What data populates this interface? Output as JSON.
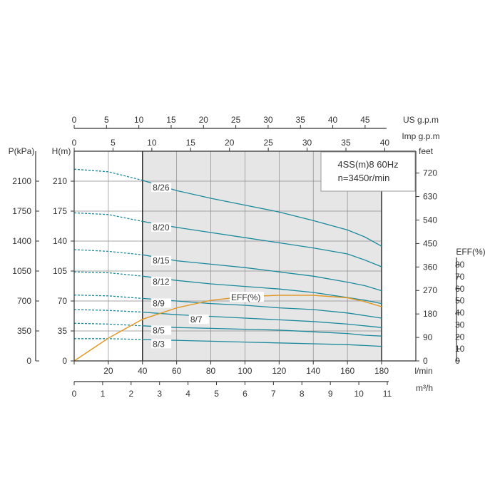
{
  "chart_data": {
    "type": "line",
    "title_line1": "4SS(m)8 60Hz",
    "title_line2": "n=3450r/min",
    "axes": {
      "flow_lmin": {
        "label": "l/min",
        "ticks": [
          0,
          20,
          40,
          60,
          80,
          100,
          120,
          140,
          160,
          180
        ],
        "range": [
          0,
          180
        ]
      },
      "flow_m3h": {
        "label": "m³/h",
        "ticks": [
          0,
          1,
          2,
          3,
          4,
          5,
          6,
          7,
          8,
          9,
          10,
          11
        ]
      },
      "us_gpm": {
        "label": "US g.p.m",
        "ticks": [
          0,
          5,
          10,
          15,
          20,
          25,
          30,
          35,
          40,
          45
        ]
      },
      "imp_gpm": {
        "label": "Imp g.p.m",
        "ticks": [
          0,
          5,
          10,
          15,
          20,
          25,
          30,
          35,
          40
        ]
      },
      "head_m": {
        "label": "H(m)",
        "ticks": [
          0,
          35,
          70,
          105,
          140,
          175,
          210
        ],
        "range": [
          0,
          245
        ]
      },
      "pressure_kpa": {
        "label": "P(kPa)",
        "ticks": [
          0,
          350,
          700,
          1050,
          1400,
          1750,
          2100
        ]
      },
      "head_feet": {
        "label": "feet",
        "ticks": [
          0,
          90,
          180,
          270,
          360,
          450,
          540,
          630,
          720
        ]
      },
      "eff_pct": {
        "label": "EFF(%)",
        "ticks": [
          0,
          10,
          20,
          30,
          40,
          50,
          60,
          70,
          80
        ],
        "range": [
          0,
          80
        ]
      }
    },
    "operating_range_lmin": [
      40,
      180
    ],
    "dashed_below_lmin": 40,
    "x": [
      0,
      20,
      40,
      60,
      80,
      100,
      120,
      140,
      160,
      170,
      180
    ],
    "series": [
      {
        "name": "8/26",
        "values": [
          224,
          221,
          211,
          199,
          190,
          182,
          174,
          164,
          153,
          145,
          134
        ]
      },
      {
        "name": "8/20",
        "values": [
          173,
          171,
          163,
          156,
          150,
          144,
          138,
          132,
          125,
          118,
          110
        ]
      },
      {
        "name": "8/15",
        "values": [
          130,
          128,
          124,
          117,
          113,
          109,
          104,
          99,
          92,
          88,
          82
        ]
      },
      {
        "name": "8/12",
        "values": [
          104,
          103,
          99,
          94,
          90,
          87,
          84,
          80,
          74,
          71,
          67
        ]
      },
      {
        "name": "8/9",
        "values": [
          77,
          76,
          73,
          70,
          67,
          65,
          62,
          60,
          56,
          53,
          50
        ]
      },
      {
        "name": "8/7",
        "values": [
          60,
          59,
          57,
          54,
          52,
          50,
          48,
          46,
          43,
          41,
          39
        ]
      },
      {
        "name": "8/5",
        "values": [
          44,
          43,
          41,
          39,
          38,
          37,
          36,
          34,
          32,
          30,
          29
        ]
      },
      {
        "name": "8/3",
        "values": [
          26,
          26,
          25,
          24,
          23,
          22,
          21,
          20,
          19,
          18,
          17
        ]
      }
    ],
    "efficiency": {
      "name": "EFF(%)",
      "x": [
        0,
        20,
        40,
        60,
        80,
        100,
        120,
        140,
        160,
        170,
        180
      ],
      "values": [
        0,
        18,
        33,
        42,
        48,
        51,
        52,
        52,
        50,
        47,
        43
      ]
    },
    "colors": {
      "curve": "#1b8a9c",
      "efficiency": "#e29a2a",
      "grid": "#8a8a8a",
      "shade": "#e6e6e6",
      "axis": "#333333"
    }
  }
}
